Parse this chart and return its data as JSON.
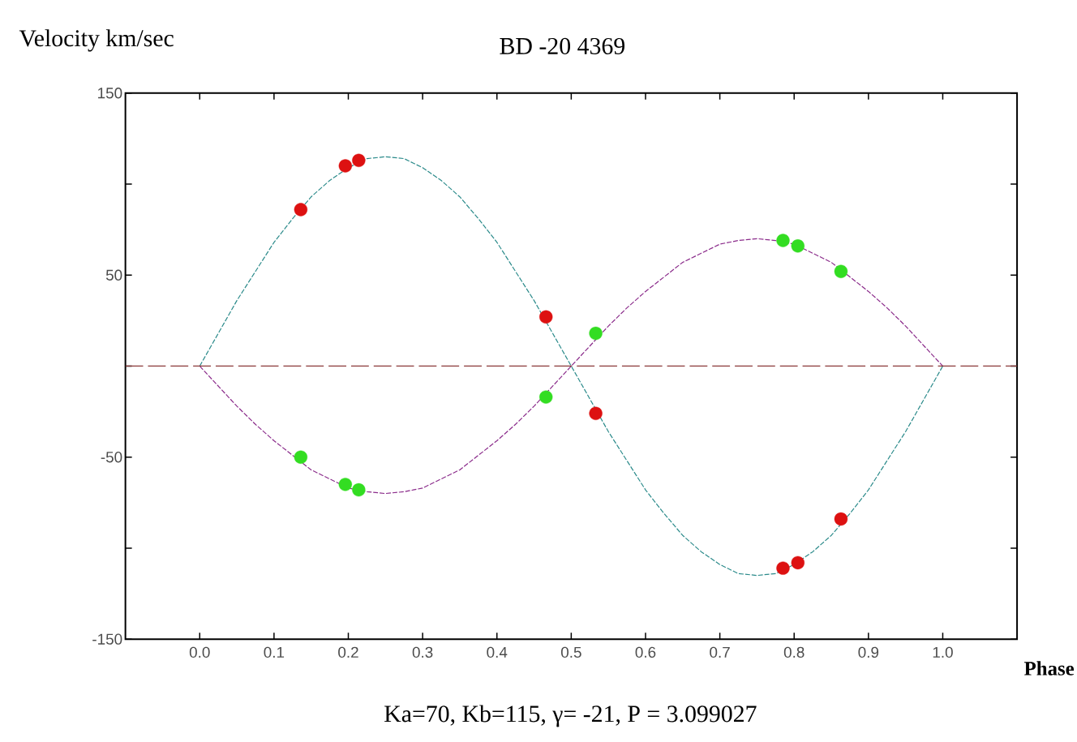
{
  "chart_data": {
    "type": "line",
    "title": "BD -20 4369",
    "xlabel": "Phase",
    "ylabel": "Velocity km/sec",
    "annotations": [
      "Ka=70, Kb=115, γ= -21, P = 3.099027"
    ],
    "xlim": [
      -0.1,
      1.1
    ],
    "ylim": [
      -150,
      150
    ],
    "xticks": [
      {
        "value": 0,
        "label": "0.0"
      },
      0.1,
      0.2,
      0.3,
      0.4,
      0.5,
      0.6,
      0.7,
      0.8,
      0.9,
      {
        "value": 1,
        "label": "1.0"
      }
    ],
    "yticks": [
      -150,
      {
        "value": -100,
        "label": null
      },
      -50,
      {
        "value": 0,
        "label": null
      },
      50,
      {
        "value": 100,
        "label": null
      },
      150
    ],
    "grid": false,
    "ref_lines": [
      {
        "axis": "y",
        "value": 0,
        "color": "#8b3a3a",
        "line_style": "dashed"
      }
    ],
    "series": [
      {
        "color": "#2a8a8a",
        "line_style": "dashed",
        "marker": "none",
        "x": [
          0,
          0.025,
          0.05,
          0.075,
          0.1,
          0.125,
          0.15,
          0.175,
          0.2,
          0.225,
          0.25,
          0.275,
          0.3,
          0.325,
          0.35,
          0.375,
          0.4,
          0.425,
          0.45,
          0.475,
          0.5,
          0.525,
          0.55,
          0.575,
          0.6,
          0.625,
          0.65,
          0.675,
          0.7,
          0.725,
          0.75,
          0.775,
          0.8,
          0.825,
          0.85,
          0.875,
          0.9,
          0.925,
          0.95,
          0.975,
          1
        ],
        "values": [
          0,
          18,
          36,
          52,
          68,
          81,
          93,
          102,
          109,
          114,
          115,
          114,
          109,
          102,
          93,
          81,
          68,
          52,
          36,
          18,
          0,
          -18,
          -36,
          -52,
          -68,
          -81,
          -93,
          -102,
          -109,
          -114,
          -115,
          -114,
          -109,
          -102,
          -93,
          -81,
          -68,
          -52,
          -36,
          -18,
          0
        ]
      },
      {
        "color": "#8a2a8a",
        "line_style": "dashed",
        "marker": "none",
        "x": [
          0,
          0.025,
          0.05,
          0.075,
          0.1,
          0.125,
          0.15,
          0.175,
          0.2,
          0.225,
          0.25,
          0.275,
          0.3,
          0.325,
          0.35,
          0.375,
          0.4,
          0.425,
          0.45,
          0.475,
          0.5,
          0.525,
          0.55,
          0.575,
          0.6,
          0.625,
          0.65,
          0.675,
          0.7,
          0.725,
          0.75,
          0.775,
          0.8,
          0.825,
          0.85,
          0.875,
          0.9,
          0.925,
          0.95,
          0.975,
          1
        ],
        "values": [
          0,
          -11,
          -22,
          -32,
          -41,
          -49,
          -57,
          -62,
          -67,
          -69,
          -70,
          -69,
          -67,
          -62,
          -57,
          -49,
          -41,
          -32,
          -22,
          -11,
          0,
          11,
          22,
          32,
          41,
          49,
          57,
          62,
          67,
          69,
          70,
          69,
          67,
          62,
          57,
          49,
          41,
          32,
          22,
          11,
          0
        ]
      },
      {
        "type": "scatter",
        "color": "#dd1111",
        "marker": "circle",
        "x": [
          0.136,
          0.196,
          0.214,
          0.466,
          0.533,
          0.785,
          0.805,
          0.863
        ],
        "values": [
          86,
          110,
          113,
          27,
          -26,
          -111,
          -108,
          -84
        ]
      },
      {
        "type": "scatter",
        "color": "#33dd22",
        "marker": "circle",
        "x": [
          0.136,
          0.196,
          0.214,
          0.466,
          0.533,
          0.785,
          0.805,
          0.863
        ],
        "values": [
          -50,
          -65,
          -68,
          -17,
          18,
          69,
          66,
          52
        ]
      }
    ]
  }
}
